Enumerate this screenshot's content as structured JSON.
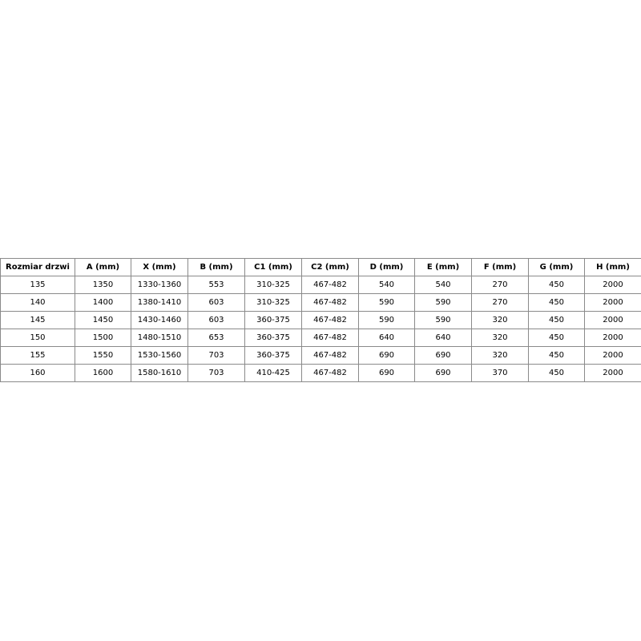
{
  "table": {
    "headers": [
      "Rozmiar drzwi",
      "A (mm)",
      "X (mm)",
      "B (mm)",
      "C1 (mm)",
      "C2 (mm)",
      "D (mm)",
      "E (mm)",
      "F (mm)",
      "G (mm)",
      "H (mm)"
    ],
    "rows": [
      [
        "135",
        "1350",
        "1330-1360",
        "553",
        "310-325",
        "467-482",
        "540",
        "540",
        "270",
        "450",
        "2000"
      ],
      [
        "140",
        "1400",
        "1380-1410",
        "603",
        "310-325",
        "467-482",
        "590",
        "590",
        "270",
        "450",
        "2000"
      ],
      [
        "145",
        "1450",
        "1430-1460",
        "603",
        "360-375",
        "467-482",
        "590",
        "590",
        "320",
        "450",
        "2000"
      ],
      [
        "150",
        "1500",
        "1480-1510",
        "653",
        "360-375",
        "467-482",
        "640",
        "640",
        "320",
        "450",
        "2000"
      ],
      [
        "155",
        "1550",
        "1530-1560",
        "703",
        "360-375",
        "467-482",
        "690",
        "690",
        "320",
        "450",
        "2000"
      ],
      [
        "160",
        "1600",
        "1580-1610",
        "703",
        "410-425",
        "467-482",
        "690",
        "690",
        "370",
        "450",
        "2000"
      ]
    ]
  }
}
